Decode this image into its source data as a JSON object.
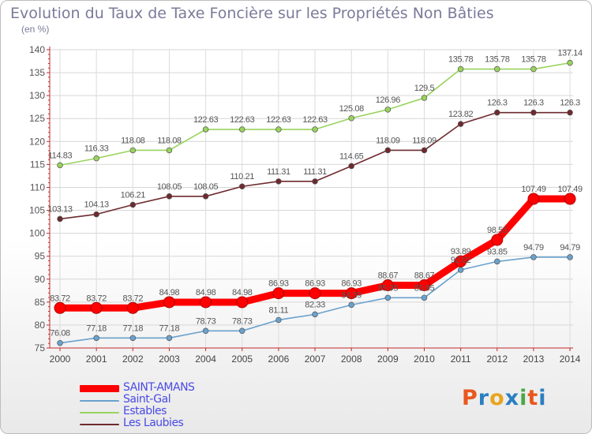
{
  "header": {
    "title": "Evolution du Taux de Taxe Foncière sur les Propriétés Non Bâties",
    "unit": "(en %)"
  },
  "logo": {
    "text": "Proxiti",
    "colors": [
      "#e8571f",
      "#2a7fc1",
      "#e7a51d",
      "#2a7fc1",
      "#4aa845",
      "#e8571f",
      "#2a7fc1"
    ]
  },
  "chart_data": {
    "type": "line",
    "x": [
      2000,
      2001,
      2002,
      2003,
      2004,
      2005,
      2006,
      2007,
      2008,
      2009,
      2010,
      2011,
      2012,
      2013,
      2014
    ],
    "ylim": [
      75,
      140
    ],
    "yticks": [
      75,
      80,
      85,
      90,
      95,
      100,
      105,
      110,
      115,
      120,
      125,
      130,
      135,
      140
    ],
    "grid": true,
    "legend_position": "bottom-left",
    "series": [
      {
        "name": "SAINT-AMANS",
        "color": "#ff0000",
        "highlight": true,
        "values": [
          83.72,
          83.72,
          83.72,
          84.98,
          84.98,
          84.98,
          86.93,
          86.93,
          86.93,
          88.67,
          88.67,
          93.89,
          98.55,
          107.49,
          107.49
        ],
        "labels": [
          "83.72",
          "83.72",
          "83.72",
          "84.98",
          "84.98",
          "84.98",
          "86.93",
          "86.93",
          "86.93",
          "88.67",
          "88.67",
          "93.89",
          "98.55",
          "107.49",
          "107.49"
        ]
      },
      {
        "name": "Saint-Gal",
        "color": "#6aa2cd",
        "values": [
          76.08,
          77.18,
          77.18,
          77.18,
          78.73,
          78.73,
          81.11,
          82.33,
          84.39,
          85.95,
          85.95,
          92.02,
          93.85,
          94.79,
          94.79
        ],
        "labels": [
          "76.08",
          "77.18",
          "77.18",
          "77.18",
          "78.73",
          "78.73",
          "81.11",
          "82.33",
          "84.39",
          "85.95",
          "85.95",
          "92.02",
          "93.85",
          "94.79",
          "94.79"
        ]
      },
      {
        "name": "Estables",
        "color": "#99d35e",
        "values": [
          114.83,
          116.33,
          118.08,
          118.08,
          122.63,
          122.63,
          122.63,
          122.63,
          125.08,
          126.96,
          129.5,
          135.78,
          135.78,
          135.78,
          137.14
        ],
        "labels": [
          "114.83",
          "116.33",
          "118.08",
          "118.08",
          "122.63",
          "122.63",
          "122.63",
          "122.63",
          "125.08",
          "126.96",
          "129.5",
          "135.78",
          "135.78",
          "135.78",
          "137.14"
        ]
      },
      {
        "name": "Les Laubies",
        "color": "#6e2a2e",
        "values": [
          103.13,
          104.13,
          106.21,
          108.05,
          108.05,
          110.21,
          111.31,
          111.31,
          114.65,
          118.09,
          118.09,
          123.82,
          126.3,
          126.3,
          126.3
        ],
        "labels": [
          "103.13",
          "104.13",
          "106.21",
          "108.05",
          "108.05",
          "110.21",
          "111.31",
          "111.31",
          "114.65",
          "118.09",
          "118.09",
          "123.82",
          "126.3",
          "126.3",
          "126.3"
        ]
      }
    ]
  }
}
